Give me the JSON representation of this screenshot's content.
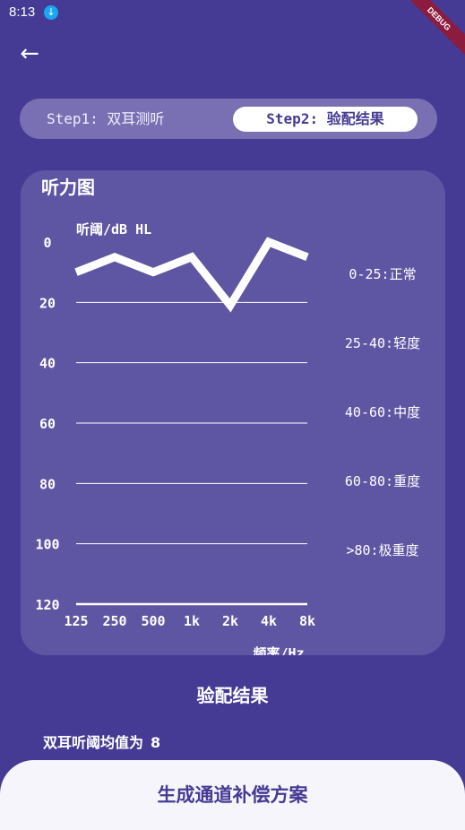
{
  "status_bar": {
    "time": "8:13",
    "download_icon": "download-icon"
  },
  "debug_banner": "DEBUG",
  "nav": {
    "back_icon": "arrow-left-icon",
    "back_glyph": "←"
  },
  "steps": [
    {
      "label": "Step1: 双耳测听",
      "selected": false
    },
    {
      "label": "Step2: 验配结果",
      "selected": true
    }
  ],
  "chart_data": {
    "type": "line",
    "title": "听力图",
    "ylabel": "听阈/dB HL",
    "xlabel": "频率/Hz",
    "categories": [
      "125",
      "250",
      "500",
      "1k",
      "2k",
      "4k",
      "8k"
    ],
    "yticks": [
      "0",
      "20",
      "40",
      "60",
      "80",
      "100",
      "120"
    ],
    "ylim": [
      0,
      120
    ],
    "y_inverted": true,
    "grid": true,
    "series": [
      {
        "values": [
          10,
          5,
          10,
          5,
          21,
          0,
          5
        ]
      }
    ],
    "legend": [
      "0-25:正常",
      "25-40:轻度",
      "40-60:中度",
      "60-80:重度",
      ">80:极重度"
    ],
    "colors": {
      "line": "#ffffff",
      "grid": "#ffffff"
    }
  },
  "result": {
    "title": "验配结果",
    "average_label": "双耳听阈均值为",
    "average_value": "8"
  },
  "generate_button": "生成通道补偿方案",
  "colors": {
    "background": "#453b94",
    "card": "#5f56a3",
    "step_bar": "#7970b3",
    "button_bg": "#f6f5fb"
  }
}
